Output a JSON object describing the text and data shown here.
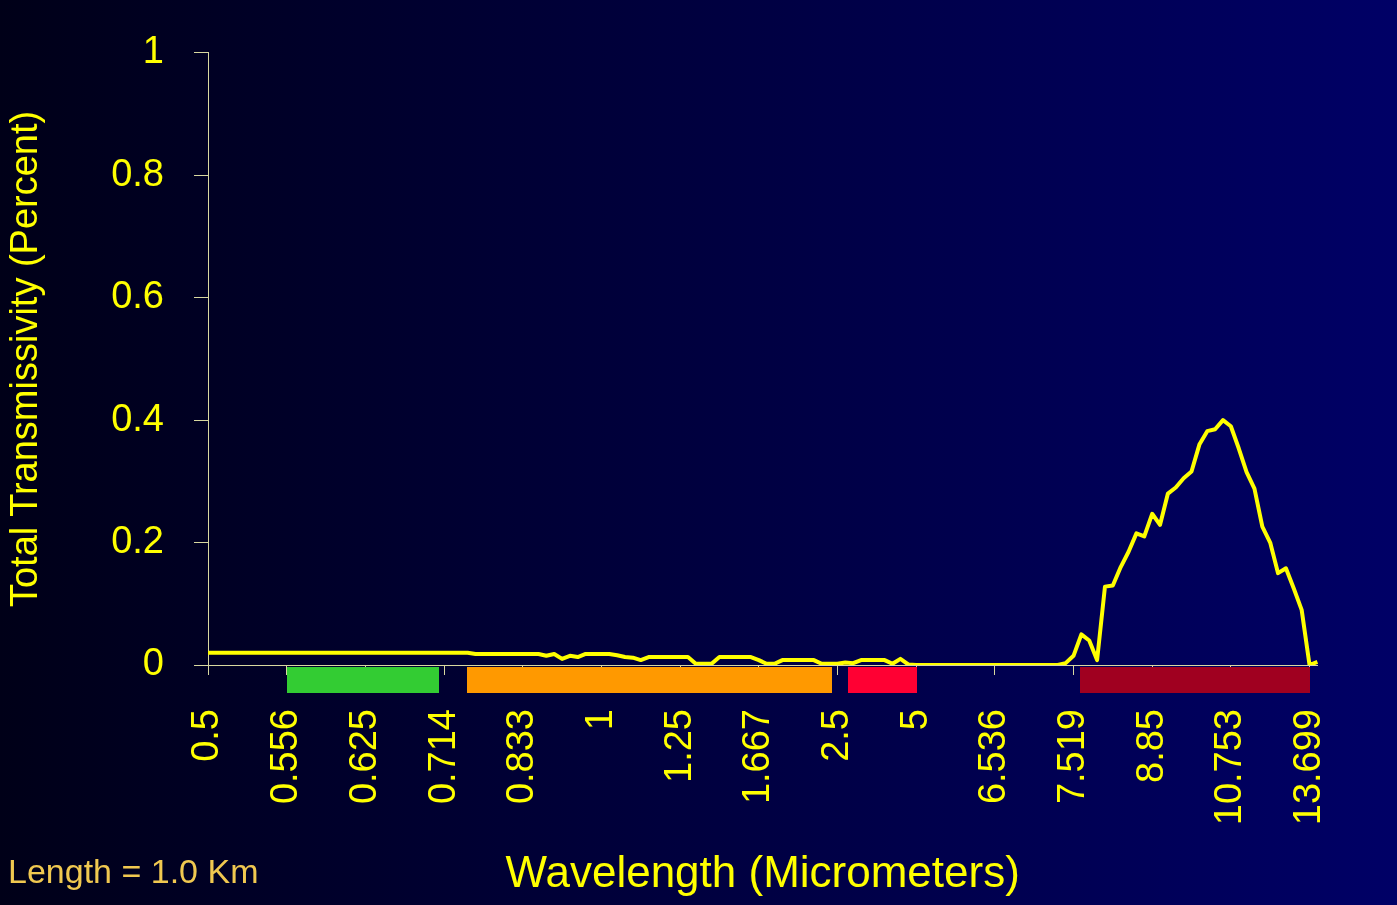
{
  "chart_data": {
    "type": "line",
    "xlabel": "Wavelength (Micrometers)",
    "ylabel": "Total Transmissivity (Percent)",
    "categories": [
      "0.5",
      null,
      null,
      null,
      null,
      null,
      null,
      null,
      null,
      null,
      "0.556",
      null,
      null,
      null,
      null,
      null,
      null,
      null,
      null,
      null,
      "0.625",
      null,
      null,
      null,
      null,
      null,
      null,
      null,
      null,
      null,
      "0.714",
      null,
      null,
      null,
      null,
      null,
      null,
      null,
      null,
      null,
      "0.833",
      null,
      null,
      null,
      null,
      null,
      null,
      null,
      null,
      null,
      "1",
      null,
      null,
      null,
      null,
      null,
      null,
      null,
      null,
      null,
      "1.25",
      null,
      null,
      null,
      null,
      null,
      null,
      null,
      null,
      null,
      "1.667",
      null,
      null,
      null,
      null,
      null,
      null,
      null,
      null,
      null,
      "2.5",
      null,
      null,
      null,
      null,
      null,
      null,
      null,
      null,
      null,
      "5",
      null,
      null,
      null,
      null,
      null,
      null,
      null,
      null,
      null,
      "6.536",
      null,
      null,
      null,
      null,
      null,
      null,
      null,
      null,
      null,
      "7.519",
      null,
      null,
      null,
      null,
      null,
      null,
      null,
      null,
      null,
      "8.85",
      null,
      null,
      null,
      null,
      null,
      null,
      null,
      null,
      null,
      "10.753",
      null,
      null,
      null,
      null,
      null,
      null,
      null,
      null,
      null,
      "13.699",
      null
    ],
    "ylim": [
      0,
      1
    ],
    "yticks": [
      0,
      0.2,
      0.4,
      0.6,
      0.8,
      1
    ],
    "grid": false,
    "legend": false,
    "marker": "none",
    "line_style": "solid",
    "annotations": [
      "Length = 1.0 Km"
    ],
    "series": [
      {
        "color": "#ffff00",
        "values": [
          0.02,
          0.02,
          0.02,
          0.02,
          0.02,
          0.02,
          0.02,
          0.02,
          0.02,
          0.02,
          0.02,
          0.02,
          0.02,
          0.02,
          0.02,
          0.02,
          0.02,
          0.02,
          0.02,
          0.02,
          0.02,
          0.02,
          0.02,
          0.02,
          0.02,
          0.02,
          0.02,
          0.02,
          0.02,
          0.02,
          0.02,
          0.02,
          0.02,
          0.02,
          0.018,
          0.018,
          0.018,
          0.018,
          0.018,
          0.018,
          0.018,
          0.018,
          0.018,
          0.015,
          0.018,
          0.01,
          0.015,
          0.013,
          0.018,
          0.018,
          0.018,
          0.018,
          0.016,
          0.013,
          0.012,
          0.008,
          0.013,
          0.013,
          0.013,
          0.013,
          0.013,
          0.013,
          0.002,
          0.002,
          0.002,
          0.013,
          0.013,
          0.013,
          0.013,
          0.013,
          0.008,
          0.002,
          0.002,
          0.008,
          0.008,
          0.008,
          0.008,
          0.008,
          0.002,
          0.002,
          0.002,
          0.004,
          0.003,
          0.008,
          0.008,
          0.008,
          0.008,
          0.002,
          0.01,
          0.001,
          0,
          0,
          0,
          0,
          0,
          0,
          0,
          0,
          0,
          0,
          0,
          0,
          0,
          0,
          0,
          0,
          0,
          0,
          0,
          0.003,
          0.015,
          0.05,
          0.04,
          0.008,
          0.128,
          0.13,
          0.16,
          0.185,
          0.215,
          0.21,
          0.247,
          0.229,
          0.28,
          0.29,
          0.305,
          0.316,
          0.36,
          0.382,
          0.385,
          0.4,
          0.39,
          0.354,
          0.315,
          0.288,
          0.226,
          0.2,
          0.15,
          0.158,
          0.125,
          0.09,
          0,
          0.005
        ]
      }
    ]
  }
}
